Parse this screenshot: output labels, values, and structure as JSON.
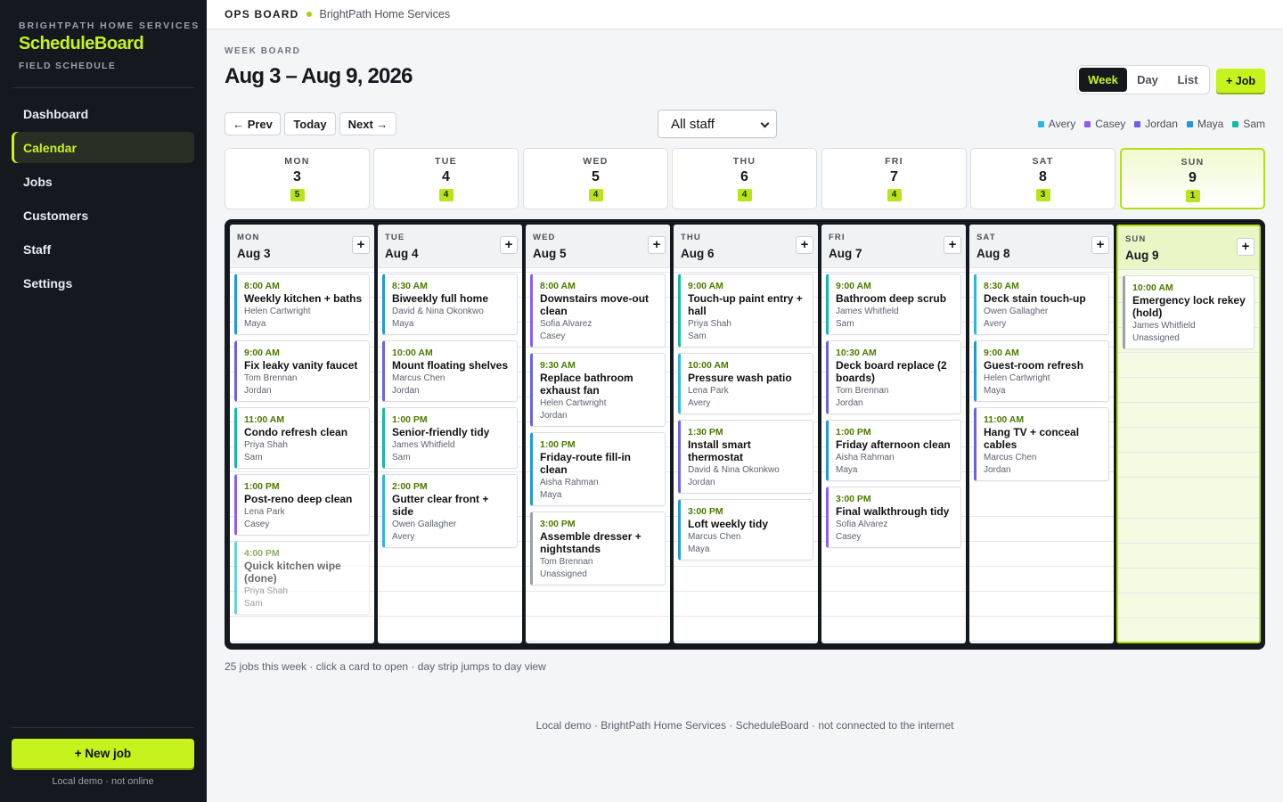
{
  "sidebar": {
    "org": "BRIGHTPATH HOME SERVICES",
    "app_name": "ScheduleBoard",
    "subtitle": "FIELD SCHEDULE",
    "nav": [
      "Dashboard",
      "Calendar",
      "Jobs",
      "Customers",
      "Staff",
      "Settings"
    ],
    "active": "Calendar",
    "new_job": "+ New job",
    "footer": "Local demo · not online"
  },
  "topbar": {
    "label": "OPS BOARD",
    "org": "BrightPath Home Services"
  },
  "header": {
    "kicker": "WEEK BOARD",
    "range": "Aug 3 – Aug 9, 2026",
    "views": [
      "Week",
      "Day",
      "List"
    ],
    "active_view": "Week",
    "add_job": "+ Job"
  },
  "controls": {
    "prev": "← Prev",
    "today": "Today",
    "next": "Next →",
    "staff_filter": "All staff"
  },
  "legend": [
    {
      "name": "Avery",
      "color": "#2fb3e6"
    },
    {
      "name": "Casey",
      "color": "#8b5cf6"
    },
    {
      "name": "Jordan",
      "color": "#6a62e6"
    },
    {
      "name": "Maya",
      "color": "#1f9ad6"
    },
    {
      "name": "Sam",
      "color": "#14b8a6"
    }
  ],
  "days": [
    {
      "dow": "MON",
      "num": "3",
      "count": "5",
      "date": "Aug 3",
      "today": false,
      "jobs": [
        {
          "time": "8:00 AM",
          "title": "Weekly kitchen + baths",
          "customer": "Helen Cartwright",
          "staff": "Maya"
        },
        {
          "time": "9:00 AM",
          "title": "Fix leaky vanity faucet",
          "customer": "Tom Brennan",
          "staff": "Jordan"
        },
        {
          "time": "11:00 AM",
          "title": "Condo refresh clean",
          "customer": "Priya Shah",
          "staff": "Sam"
        },
        {
          "time": "1:00 PM",
          "title": "Post-reno deep clean",
          "customer": "Lena Park",
          "staff": "Casey"
        },
        {
          "time": "4:00 PM",
          "title": "Quick kitchen wipe (done)",
          "customer": "Priya Shah",
          "staff": "Sam",
          "done": true
        }
      ]
    },
    {
      "dow": "TUE",
      "num": "4",
      "count": "4",
      "date": "Aug 4",
      "today": false,
      "jobs": [
        {
          "time": "8:30 AM",
          "title": "Biweekly full home",
          "customer": "David & Nina Okonkwo",
          "staff": "Maya"
        },
        {
          "time": "10:00 AM",
          "title": "Mount floating shelves",
          "customer": "Marcus Chen",
          "staff": "Jordan"
        },
        {
          "time": "1:00 PM",
          "title": "Senior-friendly tidy",
          "customer": "James Whitfield",
          "staff": "Sam"
        },
        {
          "time": "2:00 PM",
          "title": "Gutter clear front + side",
          "customer": "Owen Gallagher",
          "staff": "Avery"
        }
      ]
    },
    {
      "dow": "WED",
      "num": "5",
      "count": "4",
      "date": "Aug 5",
      "today": false,
      "jobs": [
        {
          "time": "8:00 AM",
          "title": "Downstairs move-out clean",
          "customer": "Sofia Alvarez",
          "staff": "Casey"
        },
        {
          "time": "9:30 AM",
          "title": "Replace bathroom exhaust fan",
          "customer": "Helen Cartwright",
          "staff": "Jordan"
        },
        {
          "time": "1:00 PM",
          "title": "Friday-route fill-in clean",
          "customer": "Aisha Rahman",
          "staff": "Maya"
        },
        {
          "time": "3:00 PM",
          "title": "Assemble dresser + nightstands",
          "customer": "Tom Brennan",
          "staff": "Unassigned"
        }
      ]
    },
    {
      "dow": "THU",
      "num": "6",
      "count": "4",
      "date": "Aug 6",
      "today": false,
      "jobs": [
        {
          "time": "9:00 AM",
          "title": "Touch-up paint entry + hall",
          "customer": "Priya Shah",
          "staff": "Sam"
        },
        {
          "time": "10:00 AM",
          "title": "Pressure wash patio",
          "customer": "Lena Park",
          "staff": "Avery"
        },
        {
          "time": "1:30 PM",
          "title": "Install smart thermostat",
          "customer": "David & Nina Okonkwo",
          "staff": "Jordan"
        },
        {
          "time": "3:00 PM",
          "title": "Loft weekly tidy",
          "customer": "Marcus Chen",
          "staff": "Maya"
        }
      ]
    },
    {
      "dow": "FRI",
      "num": "7",
      "count": "4",
      "date": "Aug 7",
      "today": false,
      "jobs": [
        {
          "time": "9:00 AM",
          "title": "Bathroom deep scrub",
          "customer": "James Whitfield",
          "staff": "Sam"
        },
        {
          "time": "10:30 AM",
          "title": "Deck board replace (2 boards)",
          "customer": "Tom Brennan",
          "staff": "Jordan"
        },
        {
          "time": "1:00 PM",
          "title": "Friday afternoon clean",
          "customer": "Aisha Rahman",
          "staff": "Maya"
        },
        {
          "time": "3:00 PM",
          "title": "Final walkthrough tidy",
          "customer": "Sofia Alvarez",
          "staff": "Casey"
        }
      ]
    },
    {
      "dow": "SAT",
      "num": "8",
      "count": "3",
      "date": "Aug 8",
      "today": false,
      "jobs": [
        {
          "time": "8:30 AM",
          "title": "Deck stain touch-up",
          "customer": "Owen Gallagher",
          "staff": "Avery"
        },
        {
          "time": "9:00 AM",
          "title": "Guest-room refresh",
          "customer": "Helen Cartwright",
          "staff": "Maya"
        },
        {
          "time": "11:00 AM",
          "title": "Hang TV + conceal cables",
          "customer": "Marcus Chen",
          "staff": "Jordan"
        }
      ]
    },
    {
      "dow": "SUN",
      "num": "9",
      "count": "1",
      "date": "Aug 9",
      "today": true,
      "jobs": [
        {
          "time": "10:00 AM",
          "title": "Emergency lock rekey (hold)",
          "customer": "James Whitfield",
          "staff": "Unassigned"
        }
      ]
    }
  ],
  "summary": "25 jobs this week · click a card to open · day strip jumps to day view",
  "footer": "Local demo · BrightPath Home Services · ScheduleBoard · not connected to the internet"
}
